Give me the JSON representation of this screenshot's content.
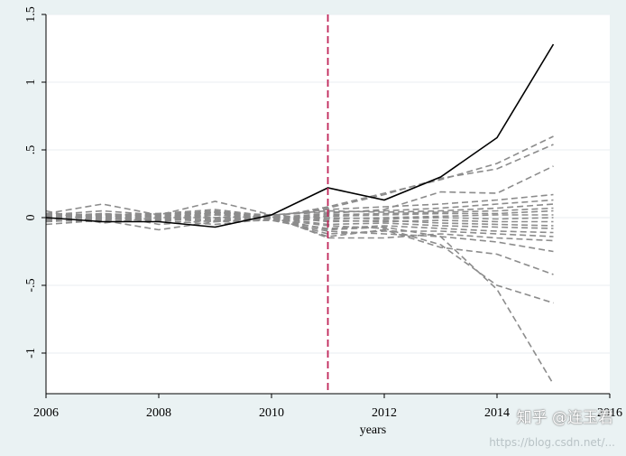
{
  "chart_data": {
    "type": "line",
    "title": "",
    "xlabel": "years",
    "ylabel": "",
    "xlim": [
      2006,
      2016
    ],
    "ylim": [
      -1.3,
      1.5
    ],
    "x_ticks": [
      2006,
      2008,
      2010,
      2012,
      2014,
      2016
    ],
    "y_ticks": [
      -1,
      -0.5,
      0,
      0.5,
      1,
      1.5
    ],
    "y_tick_labels": [
      "-1",
      "-.5",
      "0",
      ".5",
      "1",
      "1.5"
    ],
    "grid": true,
    "treatment_line_x": 2011,
    "colors": {
      "treated": "#000000",
      "placebo": "#8c8c8c",
      "treatment_line": "#c0265a",
      "plot_background": "#ffffff",
      "outer_background": "#eaf2f3"
    },
    "x": [
      2006,
      2007,
      2008,
      2009,
      2010,
      2011,
      2012,
      2013,
      2014,
      2015
    ],
    "treated": [
      0.0,
      -0.03,
      -0.03,
      -0.07,
      0.02,
      0.22,
      0.13,
      0.3,
      0.59,
      1.28
    ],
    "placebo_series": [
      [
        0.02,
        0.05,
        0.02,
        0.05,
        0.0,
        0.08,
        0.18,
        0.28,
        0.4,
        0.6
      ],
      [
        0.03,
        0.02,
        0.03,
        0.06,
        0.01,
        0.07,
        0.17,
        0.29,
        0.36,
        0.54
      ],
      [
        0.01,
        0.03,
        0.0,
        0.02,
        0.0,
        0.03,
        0.06,
        0.19,
        0.18,
        0.38
      ],
      [
        0.0,
        0.01,
        0.01,
        0.04,
        0.01,
        0.06,
        0.08,
        0.1,
        0.13,
        0.17
      ],
      [
        -0.01,
        0.01,
        0.03,
        0.04,
        0.02,
        0.04,
        0.05,
        0.07,
        0.1,
        0.13
      ],
      [
        0.03,
        0.1,
        0.02,
        0.12,
        0.02,
        0.05,
        0.04,
        0.05,
        0.07,
        0.1
      ],
      [
        0.0,
        0.0,
        -0.02,
        0.02,
        0.0,
        0.02,
        0.03,
        0.04,
        0.05,
        0.07
      ],
      [
        -0.02,
        0.03,
        0.01,
        0.02,
        -0.01,
        0.01,
        0.02,
        0.03,
        0.03,
        0.05
      ],
      [
        0.01,
        -0.01,
        0.02,
        0.03,
        0.0,
        -0.01,
        0.0,
        0.01,
        0.02,
        0.02
      ],
      [
        0.0,
        0.02,
        0.0,
        -0.01,
        0.01,
        0.0,
        -0.01,
        0.0,
        -0.01,
        0.0
      ],
      [
        -0.01,
        0.0,
        -0.03,
        0.02,
        -0.01,
        -0.02,
        -0.03,
        -0.02,
        -0.03,
        -0.03
      ],
      [
        0.02,
        -0.02,
        0.01,
        0.0,
        0.01,
        -0.03,
        -0.02,
        -0.04,
        -0.05,
        -0.06
      ],
      [
        -0.02,
        -0.03,
        -0.01,
        -0.03,
        0.0,
        -0.05,
        -0.04,
        -0.06,
        -0.07,
        -0.08
      ],
      [
        0.0,
        0.03,
        -0.05,
        -0.02,
        -0.02,
        -0.08,
        -0.06,
        -0.08,
        -0.1,
        -0.11
      ],
      [
        -0.03,
        -0.01,
        -0.02,
        -0.05,
        -0.01,
        -0.12,
        -0.1,
        -0.1,
        -0.12,
        -0.14
      ],
      [
        0.05,
        -0.04,
        0.0,
        0.0,
        0.01,
        -0.15,
        -0.15,
        -0.12,
        -0.15,
        -0.17
      ],
      [
        -0.05,
        -0.02,
        -0.09,
        -0.03,
        -0.02,
        -0.1,
        -0.12,
        -0.14,
        -0.18,
        -0.25
      ],
      [
        0.01,
        0.0,
        -0.01,
        -0.02,
        0.0,
        -0.14,
        -0.09,
        -0.22,
        -0.27,
        -0.42
      ],
      [
        -0.02,
        0.02,
        0.02,
        0.0,
        -0.01,
        -0.06,
        -0.08,
        -0.2,
        -0.5,
        -0.63
      ],
      [
        0.03,
        0.01,
        -0.02,
        0.04,
        0.0,
        -0.09,
        -0.07,
        -0.14,
        -0.53,
        -1.23
      ]
    ]
  },
  "watermark": {
    "text": "知乎 @连玉君",
    "url": "https://blog.csdn.net/..."
  }
}
